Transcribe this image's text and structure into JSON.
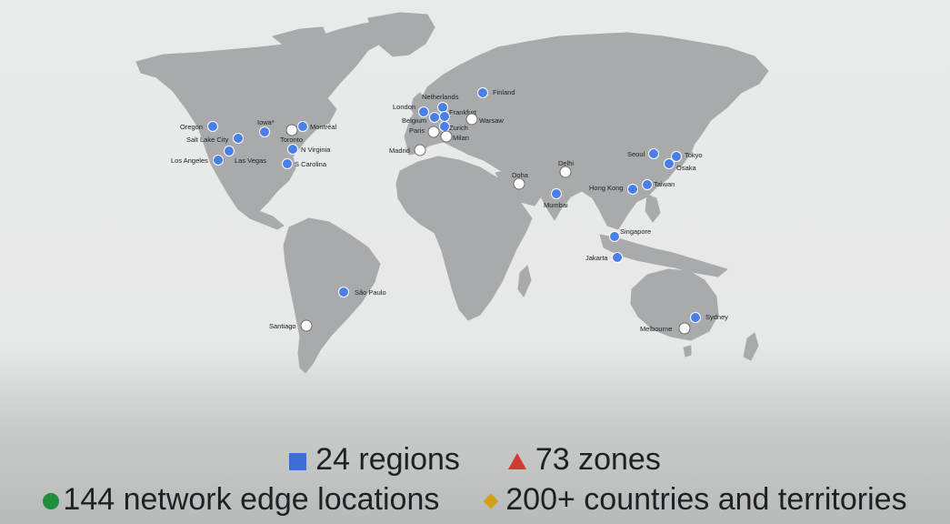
{
  "map": {
    "land_color": "#a8aaac",
    "background_color": "#e9eaea",
    "pins": [
      {
        "label": "Oregon",
        "kind": "region"
      },
      {
        "label": "Salt Lake City",
        "kind": "region"
      },
      {
        "label": "Los Angeles",
        "kind": "region"
      },
      {
        "label": "Las Vegas",
        "kind": "region"
      },
      {
        "label": "Iowa*",
        "kind": "region"
      },
      {
        "label": "Toronto",
        "kind": "future"
      },
      {
        "label": "Montréal",
        "kind": "region"
      },
      {
        "label": "N Virginia",
        "kind": "region"
      },
      {
        "label": "S Carolina",
        "kind": "region"
      },
      {
        "label": "São Paulo",
        "kind": "region"
      },
      {
        "label": "Santiago",
        "kind": "future"
      },
      {
        "label": "London",
        "kind": "region"
      },
      {
        "label": "Netherlands",
        "kind": "region"
      },
      {
        "label": "Belgium",
        "kind": "region"
      },
      {
        "label": "Frankfurt",
        "kind": "region"
      },
      {
        "label": "Paris",
        "kind": "future"
      },
      {
        "label": "Zurich",
        "kind": "region"
      },
      {
        "label": "Milan",
        "kind": "future"
      },
      {
        "label": "Madrid",
        "kind": "future"
      },
      {
        "label": "Warsaw",
        "kind": "future"
      },
      {
        "label": "Finland",
        "kind": "region"
      },
      {
        "label": "Doha",
        "kind": "future"
      },
      {
        "label": "Delhi",
        "kind": "future"
      },
      {
        "label": "Mumbai",
        "kind": "region"
      },
      {
        "label": "Hong Kong",
        "kind": "region"
      },
      {
        "label": "Taiwan",
        "kind": "region"
      },
      {
        "label": "Seoul",
        "kind": "region"
      },
      {
        "label": "Tokyo",
        "kind": "region"
      },
      {
        "label": "Osaka",
        "kind": "region"
      },
      {
        "label": "Singapore",
        "kind": "region"
      },
      {
        "label": "Jakarta",
        "kind": "region"
      },
      {
        "label": "Sydney",
        "kind": "region"
      },
      {
        "label": "Melbourne",
        "kind": "future"
      }
    ]
  },
  "stats": {
    "regions": {
      "text": "24 regions",
      "color": "#3b6fd8",
      "marker": "square"
    },
    "zones": {
      "text": "73 zones",
      "color": "#d03a2f",
      "marker": "triangle"
    },
    "edge": {
      "text": "144 network edge locations",
      "color": "#1e8e3e",
      "marker": "circle"
    },
    "countries": {
      "text": "200+ countries and territories",
      "color": "#d4a017",
      "marker": "diamond"
    }
  }
}
